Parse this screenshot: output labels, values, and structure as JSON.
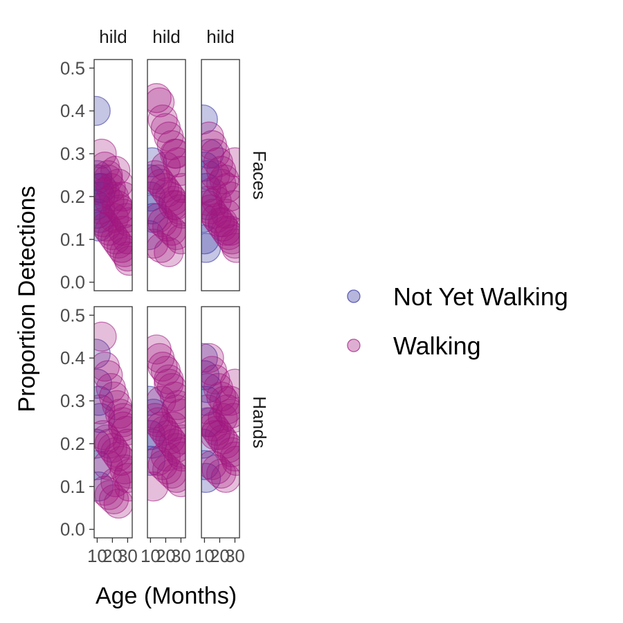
{
  "chart_data": {
    "type": "scatter",
    "title": "",
    "xlabel": "Age (Months)",
    "ylabel": "Proportion Detections",
    "ylim": [
      -0.02,
      0.52
    ],
    "xlim": [
      8,
      33
    ],
    "x_tick_labels": [
      "10",
      "20",
      "30"
    ],
    "y_tick_labels": [
      "0.0",
      "0.1",
      "0.2",
      "0.3",
      "0.4",
      "0.5"
    ],
    "facet_columns": [
      "hild",
      "hild",
      "hild"
    ],
    "facet_rows": [
      "Faces",
      "Hands"
    ],
    "legend": {
      "position": "right",
      "entries": [
        {
          "label": "Not Yet Walking",
          "color": "#2e2e9e"
        },
        {
          "label": "Walking",
          "color": "#a0167f"
        }
      ]
    },
    "series": [
      {
        "name": "Not Yet Walking",
        "color": "#2e2e9e",
        "panels": [
          {
            "row": "Faces",
            "col": 0,
            "x": [
              9,
              10,
              11,
              12,
              9,
              10,
              11,
              13,
              10,
              12
            ],
            "y": [
              0.4,
              0.24,
              0.22,
              0.2,
              0.18,
              0.16,
              0.13,
              0.22,
              0.25,
              0.15
            ]
          },
          {
            "row": "Faces",
            "col": 1,
            "x": [
              9,
              10,
              11,
              12,
              10,
              11
            ],
            "y": [
              0.11,
              0.2,
              0.28,
              0.15,
              0.24,
              0.17
            ]
          },
          {
            "row": "Faces",
            "col": 2,
            "x": [
              9,
              10,
              11,
              12,
              9,
              10,
              11,
              13,
              12
            ],
            "y": [
              0.38,
              0.27,
              0.22,
              0.18,
              0.15,
              0.1,
              0.08,
              0.3,
              0.25
            ]
          },
          {
            "row": "Hands",
            "col": 0,
            "x": [
              9,
              10,
              11,
              12,
              10,
              11,
              9
            ],
            "y": [
              0.41,
              0.34,
              0.3,
              0.26,
              0.15,
              0.1,
              0.2
            ]
          },
          {
            "row": "Hands",
            "col": 1,
            "x": [
              9,
              10,
              11,
              12,
              10
            ],
            "y": [
              0.3,
              0.22,
              0.2,
              0.27,
              0.16
            ]
          },
          {
            "row": "Hands",
            "col": 2,
            "x": [
              9,
              10,
              11,
              12,
              9,
              10,
              11,
              12
            ],
            "y": [
              0.4,
              0.36,
              0.3,
              0.25,
              0.2,
              0.15,
              0.12,
              0.33
            ]
          }
        ]
      },
      {
        "name": "Walking",
        "color": "#a0167f",
        "panels": [
          {
            "row": "Faces",
            "col": 0,
            "x": [
              13,
              15,
              17,
              19,
              21,
              23,
              25,
              27,
              29,
              14,
              16,
              18,
              20,
              22,
              24,
              26,
              28,
              30,
              31,
              15,
              18,
              21,
              24,
              27,
              30,
              12,
              17,
              22,
              27,
              31
            ],
            "y": [
              0.3,
              0.27,
              0.25,
              0.22,
              0.2,
              0.18,
              0.17,
              0.16,
              0.15,
              0.14,
              0.13,
              0.12,
              0.11,
              0.1,
              0.09,
              0.08,
              0.07,
              0.06,
              0.05,
              0.21,
              0.19,
              0.15,
              0.23,
              0.12,
              0.1,
              0.17,
              0.24,
              0.26,
              0.2,
              0.14
            ]
          },
          {
            "row": "Faces",
            "col": 1,
            "x": [
              14,
              16,
              18,
              20,
              22,
              24,
              26,
              28,
              30,
              13,
              15,
              17,
              19,
              21,
              23,
              25,
              27,
              29,
              31,
              15,
              18,
              21,
              24,
              27,
              30,
              12,
              17,
              22,
              27,
              31,
              20,
              25
            ],
            "y": [
              0.43,
              0.42,
              0.38,
              0.36,
              0.34,
              0.32,
              0.3,
              0.28,
              0.26,
              0.25,
              0.24,
              0.23,
              0.22,
              0.21,
              0.2,
              0.19,
              0.18,
              0.17,
              0.16,
              0.15,
              0.14,
              0.13,
              0.12,
              0.11,
              0.1,
              0.09,
              0.08,
              0.07,
              0.3,
              0.22,
              0.27,
              0.18
            ]
          },
          {
            "row": "Faces",
            "col": 2,
            "x": [
              13,
              15,
              17,
              19,
              21,
              23,
              25,
              27,
              29,
              14,
              16,
              18,
              20,
              22,
              24,
              26,
              28,
              30,
              31,
              15,
              18,
              21,
              24,
              27,
              30,
              12,
              17,
              22
            ],
            "y": [
              0.34,
              0.32,
              0.3,
              0.28,
              0.26,
              0.24,
              0.22,
              0.2,
              0.18,
              0.17,
              0.16,
              0.15,
              0.14,
              0.13,
              0.12,
              0.11,
              0.1,
              0.09,
              0.08,
              0.21,
              0.19,
              0.23,
              0.16,
              0.12,
              0.28,
              0.19,
              0.25,
              0.14
            ]
          },
          {
            "row": "Hands",
            "col": 0,
            "x": [
              13,
              15,
              17,
              19,
              21,
              23,
              25,
              27,
              29,
              14,
              16,
              18,
              20,
              22,
              24,
              26,
              28,
              30,
              31,
              15,
              18,
              21,
              24,
              27,
              30,
              12,
              17,
              22,
              27,
              31
            ],
            "y": [
              0.45,
              0.38,
              0.36,
              0.33,
              0.31,
              0.29,
              0.27,
              0.25,
              0.23,
              0.22,
              0.21,
              0.2,
              0.19,
              0.18,
              0.17,
              0.16,
              0.14,
              0.12,
              0.1,
              0.09,
              0.08,
              0.07,
              0.06,
              0.24,
              0.2,
              0.28,
              0.15,
              0.11,
              0.26,
              0.13
            ]
          },
          {
            "row": "Hands",
            "col": 1,
            "x": [
              14,
              16,
              18,
              20,
              22,
              24,
              26,
              28,
              30,
              13,
              15,
              17,
              19,
              21,
              23,
              25,
              27,
              29,
              31,
              15,
              18,
              21,
              24,
              27,
              30,
              12,
              17,
              22,
              27,
              31,
              20,
              25
            ],
            "y": [
              0.42,
              0.4,
              0.38,
              0.37,
              0.35,
              0.33,
              0.31,
              0.29,
              0.27,
              0.26,
              0.25,
              0.24,
              0.23,
              0.22,
              0.21,
              0.2,
              0.19,
              0.18,
              0.17,
              0.16,
              0.15,
              0.14,
              0.13,
              0.12,
              0.11,
              0.1,
              0.3,
              0.34,
              0.28,
              0.21,
              0.17,
              0.24
            ]
          },
          {
            "row": "Hands",
            "col": 2,
            "x": [
              13,
              15,
              17,
              19,
              21,
              23,
              25,
              27,
              29,
              14,
              16,
              18,
              20,
              22,
              24,
              26,
              28,
              30,
              31,
              15,
              18,
              21,
              24,
              27,
              30,
              12,
              17,
              22
            ],
            "y": [
              0.4,
              0.37,
              0.35,
              0.33,
              0.31,
              0.3,
              0.28,
              0.27,
              0.26,
              0.25,
              0.24,
              0.23,
              0.22,
              0.21,
              0.2,
              0.19,
              0.18,
              0.17,
              0.16,
              0.15,
              0.14,
              0.13,
              0.12,
              0.3,
              0.34,
              0.28,
              0.22,
              0.26
            ]
          }
        ]
      }
    ]
  }
}
